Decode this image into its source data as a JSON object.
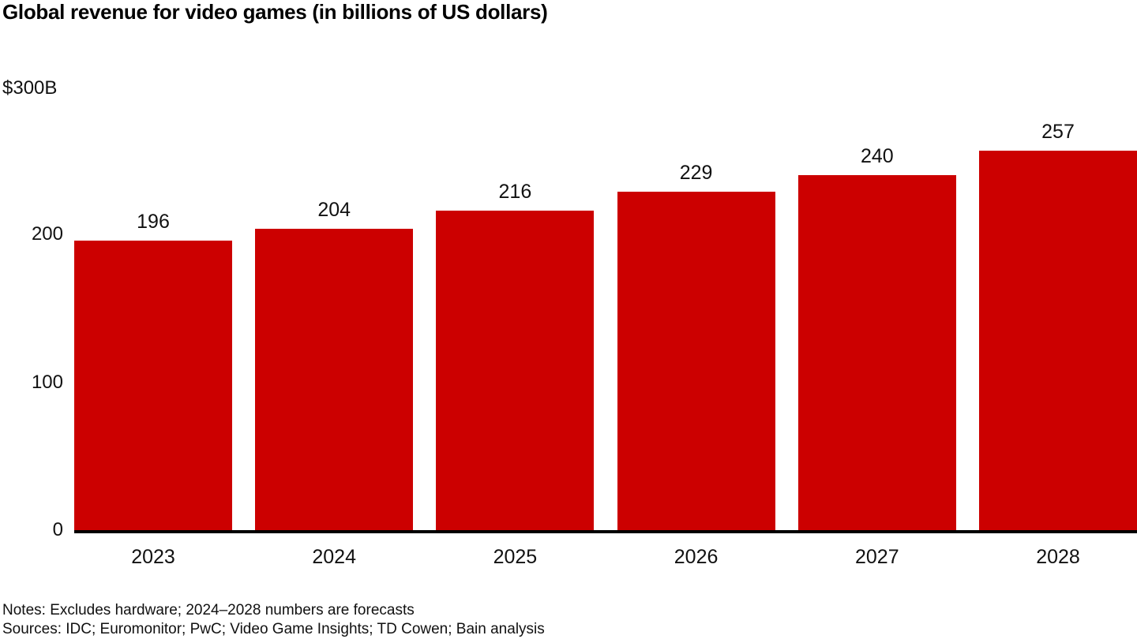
{
  "chart_data": {
    "type": "bar",
    "title": "Global revenue for video games (in billions of US dollars)",
    "categories": [
      "2023",
      "2024",
      "2025",
      "2026",
      "2027",
      "2028"
    ],
    "values": [
      196,
      204,
      216,
      229,
      240,
      257
    ],
    "xlabel": "",
    "ylabel": "",
    "ylim": [
      0,
      300
    ],
    "ymax_label": "$300B",
    "yticks": [
      0,
      100,
      200
    ],
    "ytick_labels": [
      "0",
      "100",
      "200"
    ],
    "grid": false,
    "legend": "none",
    "data_labels_shown": true,
    "bar_color": "#cc0000",
    "axis_color": "#000000",
    "text_color": "#111111"
  },
  "footer": {
    "notes": "Notes: Excludes hardware; 2024–2028 numbers are forecasts",
    "sources": "Sources: IDC; Euromonitor; PwC; Video Game Insights; TD Cowen; Bain analysis"
  }
}
